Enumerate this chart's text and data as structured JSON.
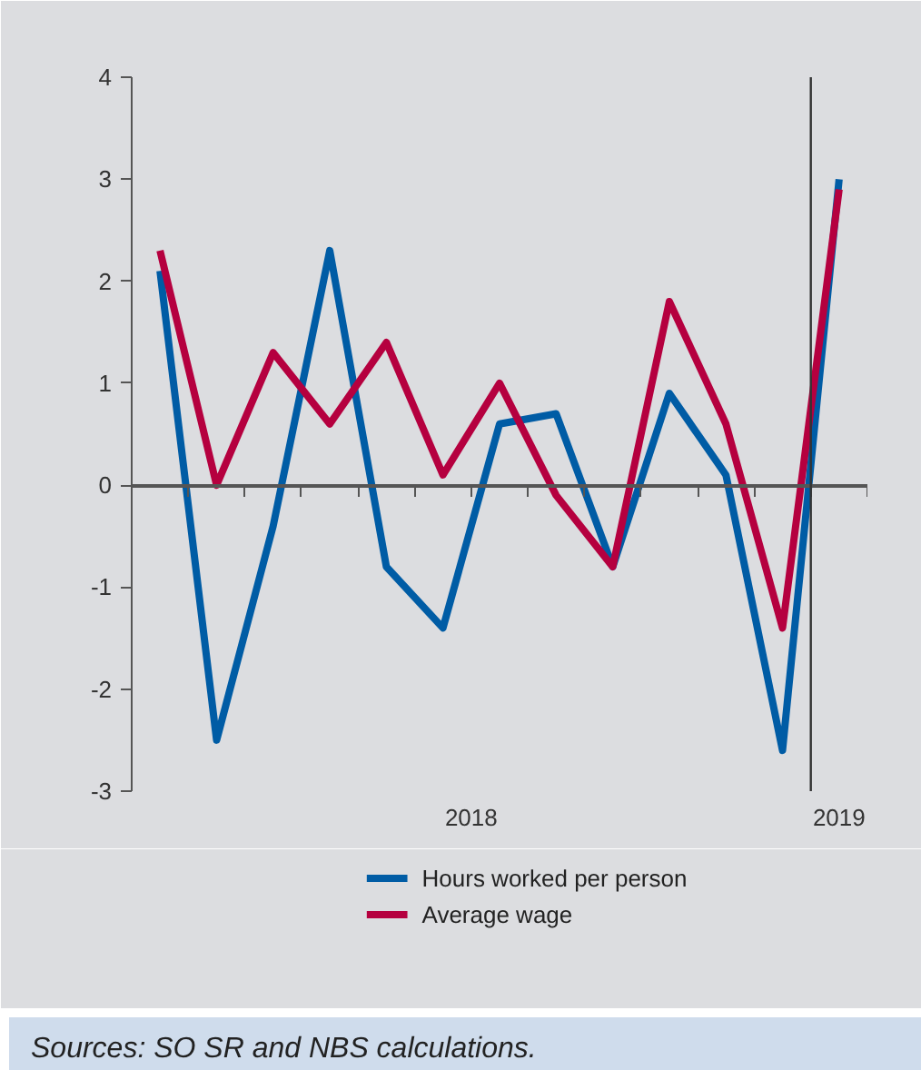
{
  "chart_data": {
    "type": "line",
    "categories": [
      null,
      null,
      null,
      null,
      null,
      null,
      null,
      null,
      null,
      null,
      null,
      null,
      null
    ],
    "ylim": [
      -3,
      4
    ],
    "yticks": [
      -3,
      -2,
      -1,
      0,
      1,
      2,
      3,
      4
    ],
    "series": [
      {
        "name": "Hours worked per person",
        "color": "#005ca5",
        "values": [
          2.1,
          -2.5,
          -0.4,
          2.3,
          -0.8,
          -1.4,
          0.6,
          0.7,
          -0.8,
          0.9,
          0.1,
          -2.6,
          3.0
        ]
      },
      {
        "name": "Average wage",
        "color": "#b5003f",
        "values": [
          2.3,
          0.0,
          1.3,
          0.6,
          1.4,
          0.1,
          1.0,
          -0.1,
          -0.8,
          1.8,
          0.6,
          -1.4,
          2.9
        ]
      }
    ],
    "legend": "bottom",
    "annotations": [
      "2018",
      "2019",
      "Sources: SO SR and NBS calculations."
    ]
  }
}
